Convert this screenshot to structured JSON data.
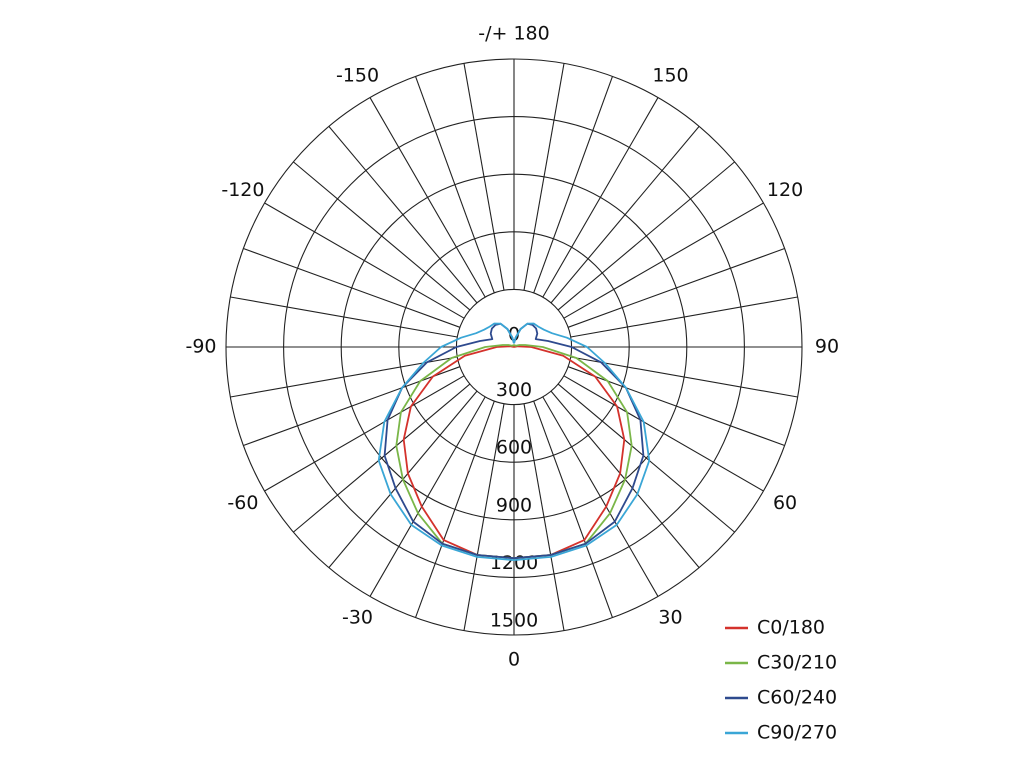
{
  "chart_data": {
    "type": "polar",
    "angles": [
      -180,
      -170,
      -160,
      -150,
      -140,
      -130,
      -120,
      -110,
      -100,
      -90,
      -80,
      -70,
      -60,
      -50,
      -40,
      -30,
      -20,
      -10,
      0,
      10,
      20,
      30,
      40,
      50,
      60,
      70,
      80,
      90,
      100,
      110,
      120,
      130,
      140,
      150,
      160,
      170,
      180
    ],
    "series": [
      {
        "name": "C0/180",
        "color": "#d4322c",
        "values": [
          0,
          0,
          0,
          0,
          0,
          0,
          0,
          0,
          20,
          90,
          260,
          450,
          620,
          750,
          860,
          960,
          1070,
          1100,
          1100,
          1100,
          1070,
          960,
          860,
          750,
          620,
          450,
          260,
          90,
          20,
          0,
          0,
          0,
          0,
          0,
          0,
          0,
          0
        ]
      },
      {
        "name": "C30/210",
        "color": "#7ab648",
        "values": [
          10,
          10,
          10,
          10,
          10,
          10,
          15,
          30,
          60,
          150,
          330,
          520,
          680,
          800,
          900,
          1000,
          1090,
          1100,
          1100,
          1100,
          1090,
          1000,
          900,
          800,
          680,
          520,
          330,
          150,
          60,
          30,
          15,
          10,
          10,
          10,
          10,
          10,
          10
        ]
      },
      {
        "name": "C60/240",
        "color": "#2e4a8e",
        "values": [
          20,
          50,
          100,
          140,
          150,
          150,
          140,
          120,
          180,
          300,
          460,
          620,
          760,
          880,
          960,
          1050,
          1090,
          1100,
          1100,
          1100,
          1090,
          1050,
          960,
          880,
          760,
          620,
          460,
          300,
          180,
          120,
          140,
          150,
          150,
          140,
          100,
          50,
          20
        ]
      },
      {
        "name": "C90/270",
        "color": "#3aa6d6",
        "values": [
          20,
          50,
          100,
          140,
          160,
          165,
          180,
          210,
          280,
          380,
          480,
          620,
          780,
          920,
          1000,
          1070,
          1100,
          1110,
          1110,
          1110,
          1100,
          1070,
          1000,
          920,
          780,
          620,
          480,
          380,
          280,
          210,
          180,
          165,
          160,
          140,
          100,
          50,
          20
        ]
      }
    ],
    "rlim": [
      0,
      1500
    ],
    "rticks": [
      0,
      300,
      600,
      900,
      1200,
      1500
    ],
    "aticks": [
      {
        "value": 180,
        "label": "-/+ 180"
      },
      150,
      120,
      90,
      60,
      30,
      0,
      -30,
      -60,
      -90,
      -120,
      -150
    ],
    "grid_angle_step": 10,
    "legend": "bottom-right"
  }
}
